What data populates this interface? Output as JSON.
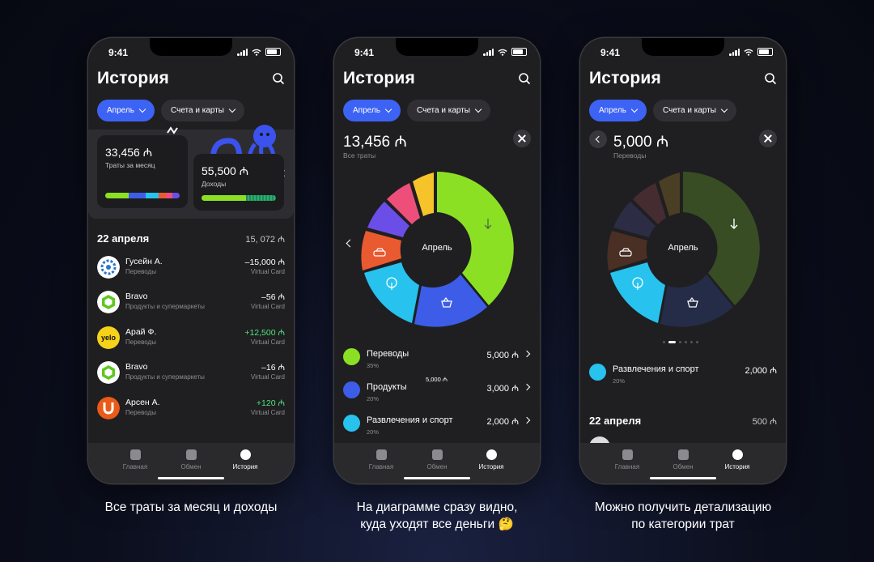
{
  "status_time": "9:41",
  "colors": {
    "accent": "#3d63f5",
    "green": "#8be024",
    "blue": "#3d5de8",
    "cyan": "#27c2ee",
    "orange": "#ea5a30",
    "purple": "#6b4ee8",
    "pink": "#ee4f7a",
    "yellow": "#f6c32a"
  },
  "screen1": {
    "title": "История",
    "chip_month": "Апрель",
    "chip_accounts": "Счета и карты",
    "spend_amount": "33,456 ₼",
    "spend_label": "Траты за месяц",
    "income_amount": "55,500 ₼",
    "income_label": "Доходы",
    "date_header": "22 апреля",
    "date_total": "15, 072 ₼",
    "transactions": [
      {
        "name": "Гусейн А.",
        "category": "Переводы",
        "amount": "–15,000 ₼",
        "card": "Virtual Card",
        "icon": "ring-logo-icon"
      },
      {
        "name": "Bravo",
        "category": "Продукты и супермаркеты",
        "amount": "–56 ₼",
        "card": "Virtual Card",
        "icon": "bravo-logo-icon"
      },
      {
        "name": "Арай Ф.",
        "category": "Переводы",
        "amount": "+12,500 ₼",
        "card": "Virtual Card",
        "icon": "yelo-logo-icon",
        "logo_text": "yelo"
      },
      {
        "name": "Bravo",
        "category": "Продукты и супермаркеты",
        "amount": "–16 ₼",
        "card": "Virtual Card",
        "icon": "bravo-logo-icon"
      },
      {
        "name": "Арсен А.",
        "category": "Переводы",
        "amount": "+120 ₼",
        "card": "Virtual Card",
        "icon": "u-logo-icon"
      }
    ],
    "caption": "Все траты за месяц и доходы"
  },
  "screen2": {
    "title": "История",
    "chip_month": "Апрель",
    "chip_accounts": "Счета и карты",
    "total": "13,456 ₼",
    "total_label": "Все траты",
    "donut_center": "Апрель",
    "tooltip_value": "5,000 ₼",
    "categories": [
      {
        "name": "Переводы",
        "pct": "35%",
        "amount": "5,000 ₼",
        "icon": "arrow-down-icon"
      },
      {
        "name": "Продукты",
        "pct": "20%",
        "amount": "3,000 ₼",
        "icon": "basket-icon"
      },
      {
        "name": "Развлечения и спорт",
        "pct": "20%",
        "amount": "2,000 ₼",
        "icon": "ferris-wheel-icon"
      }
    ],
    "caption_line1": "На диаграмме сразу видно,",
    "caption_line2": "куда уходят все деньги 🤔"
  },
  "screen3": {
    "title": "История",
    "chip_month": "Апрель",
    "chip_accounts": "Счета и карты",
    "amount": "5,000 ₼",
    "amount_label": "Переводы",
    "donut_center": "Апрель",
    "category": {
      "name": "Развлечения и спорт",
      "pct": "20%",
      "amount": "2,000 ₼"
    },
    "date_header": "22 апреля",
    "date_total": "500 ₼",
    "caption_line1": "Можно получить детализацию",
    "caption_line2": "по категории трат"
  },
  "tabs": {
    "home": "Главная",
    "exchange": "Обмен",
    "history": "История"
  }
}
